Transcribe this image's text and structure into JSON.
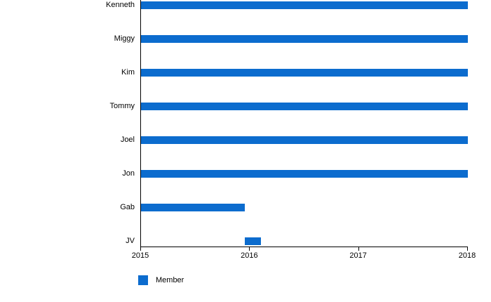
{
  "chart_data": {
    "type": "bar",
    "orientation": "horizontal",
    "title": "",
    "xlabel": "",
    "ylabel": "",
    "categories": [
      "Kenneth",
      "Miggy",
      "Kim",
      "Tommy",
      "Joel",
      "Jon",
      "Gab",
      "JV"
    ],
    "series": [
      {
        "name": "Member",
        "color": "#0c6cce",
        "ranges": [
          [
            2015,
            2018
          ],
          [
            2015,
            2018
          ],
          [
            2015,
            2018
          ],
          [
            2015,
            2018
          ],
          [
            2015,
            2018
          ],
          [
            2015,
            2018
          ],
          [
            2015,
            2015.95
          ],
          [
            2015.95,
            2016.1
          ]
        ]
      }
    ],
    "x_range": [
      2015,
      2018
    ],
    "x_ticks": [
      "2015",
      "2016",
      "2017",
      "2018"
    ],
    "grid": false,
    "axis_color": "#000000",
    "legend": {
      "position": "bottom-left",
      "entries": [
        {
          "label": "Member",
          "color": "#0c6cce"
        }
      ]
    }
  }
}
